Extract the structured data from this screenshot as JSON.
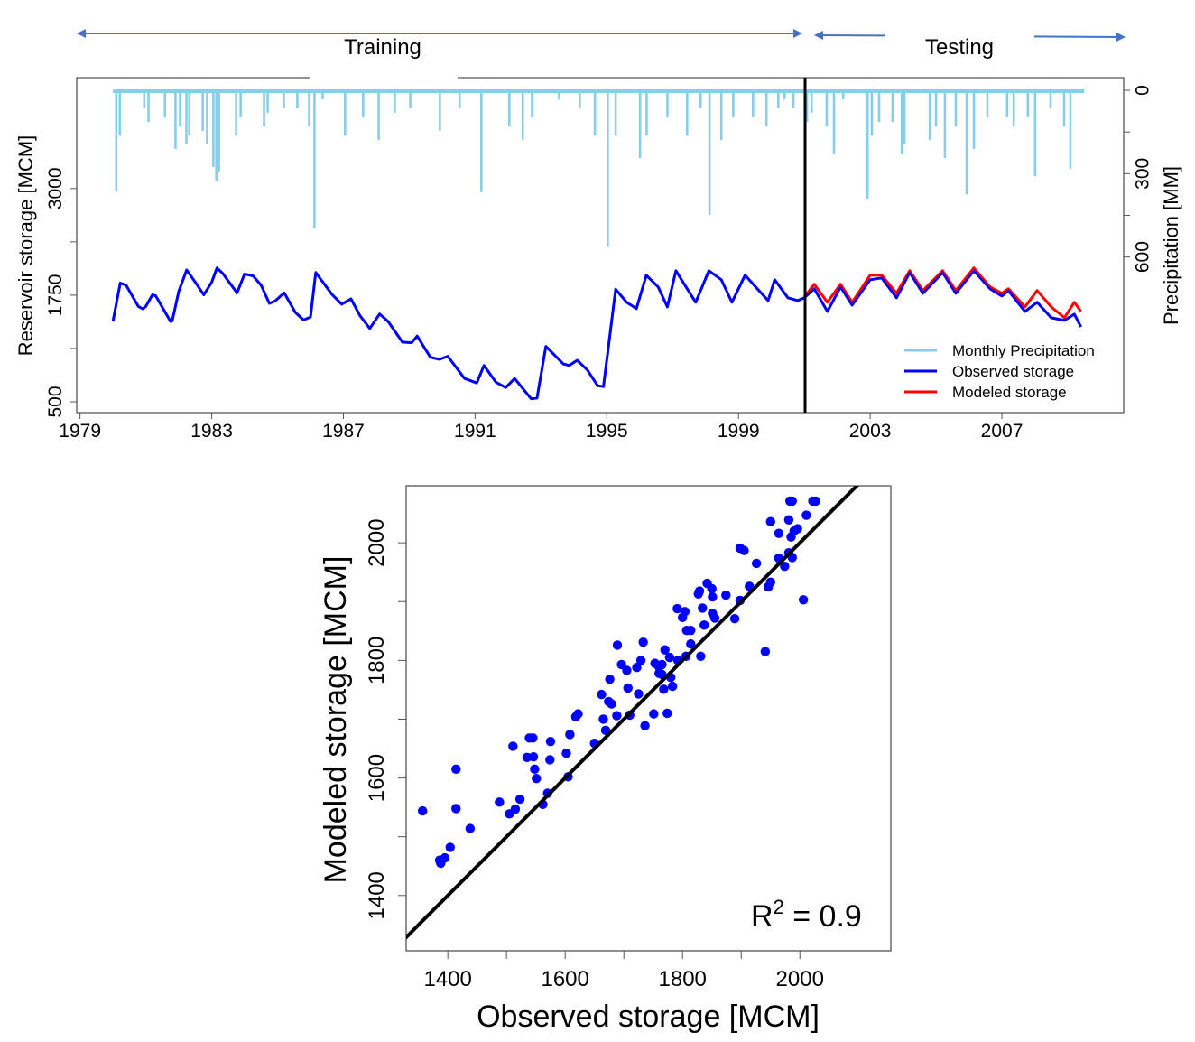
{
  "annotations": {
    "training_label": "Training",
    "testing_label": "Testing",
    "arrow_color": "#4472C4"
  },
  "chart_data": [
    {
      "type": "line",
      "ylabel": "Reservoir storage [MCM]",
      "y2label": "Precipitation [MM]",
      "xlim": [
        1978.9,
        2010.7
      ],
      "ylim": [
        373,
        4300
      ],
      "y2lim_reversed": [
        0,
        1160
      ],
      "xticks": [
        1979,
        1983,
        1987,
        1991,
        1995,
        1999,
        2003,
        2007
      ],
      "xtick_labels": [
        "1979",
        "1983",
        "1987",
        "1991",
        "1995",
        "1999",
        "2003",
        "2007"
      ],
      "yticks": [
        500,
        1125,
        1750,
        2375,
        3000
      ],
      "ytick_labels": [
        "500",
        "1750",
        "3000"
      ],
      "y2ticks": [
        0,
        150,
        300,
        450,
        600
      ],
      "y2tick_labels": [
        "0",
        "300",
        "600"
      ],
      "split_year": 2001.0,
      "legend_position": "bottom-right",
      "legend": [
        "Monthly Precipitation",
        "Observed storage",
        "Modeled storage"
      ],
      "colors": {
        "precipitation": "#87CEEB",
        "observed": "#0000FF",
        "modeled": "#FF0000",
        "split_line": "#000000"
      },
      "precipitation": [
        [
          1980.1,
          364
        ],
        [
          1980.21,
          163
        ],
        [
          1980.95,
          65
        ],
        [
          1981.08,
          114
        ],
        [
          1981.58,
          98
        ],
        [
          1981.9,
          211
        ],
        [
          1982.04,
          130
        ],
        [
          1982.23,
          195
        ],
        [
          1982.32,
          163
        ],
        [
          1982.73,
          146
        ],
        [
          1982.86,
          195
        ],
        [
          1983.05,
          276
        ],
        [
          1983.14,
          325
        ],
        [
          1983.22,
          293
        ],
        [
          1983.74,
          163
        ],
        [
          1983.88,
          98
        ],
        [
          1984.59,
          130
        ],
        [
          1984.7,
          81
        ],
        [
          1985.19,
          65
        ],
        [
          1985.6,
          65
        ],
        [
          1985.96,
          130
        ],
        [
          1986.12,
          497
        ],
        [
          1986.37,
          33
        ],
        [
          1987.05,
          163
        ],
        [
          1987.6,
          98
        ],
        [
          1988.07,
          179
        ],
        [
          1988.56,
          81
        ],
        [
          1989.03,
          65
        ],
        [
          1989.93,
          146
        ],
        [
          1990.53,
          65
        ],
        [
          1991.19,
          367
        ],
        [
          1992.04,
          130
        ],
        [
          1992.45,
          179
        ],
        [
          1992.73,
          98
        ],
        [
          1993.55,
          33
        ],
        [
          1994.18,
          65
        ],
        [
          1994.64,
          163
        ],
        [
          1995.03,
          562
        ],
        [
          1995.27,
          163
        ],
        [
          1996.01,
          244
        ],
        [
          1996.21,
          163
        ],
        [
          1996.84,
          98
        ],
        [
          1997.44,
          163
        ],
        [
          1997.85,
          65
        ],
        [
          1998.12,
          448
        ],
        [
          1998.48,
          179
        ],
        [
          1998.84,
          98
        ],
        [
          1999.44,
          98
        ],
        [
          1999.85,
          130
        ],
        [
          2000.21,
          65
        ],
        [
          2000.4,
          33
        ],
        [
          2000.67,
          65
        ],
        [
          2001.08,
          114
        ],
        [
          2001.22,
          81
        ],
        [
          2001.68,
          130
        ],
        [
          2001.9,
          228
        ],
        [
          2002.18,
          33
        ],
        [
          2002.92,
          390
        ],
        [
          2003.05,
          163
        ],
        [
          2003.27,
          114
        ],
        [
          2003.68,
          114
        ],
        [
          2003.96,
          228
        ],
        [
          2004.04,
          195
        ],
        [
          2004.81,
          179
        ],
        [
          2005.0,
          130
        ],
        [
          2005.27,
          244
        ],
        [
          2005.6,
          130
        ],
        [
          2005.93,
          374
        ],
        [
          2006.15,
          211
        ],
        [
          2006.56,
          98
        ],
        [
          2007.16,
          98
        ],
        [
          2007.36,
          130
        ],
        [
          2007.79,
          98
        ],
        [
          2008.01,
          309
        ],
        [
          2008.48,
          65
        ],
        [
          2008.89,
          130
        ],
        [
          2009.08,
          283
        ]
      ],
      "observed": [
        [
          1980.0,
          1441
        ],
        [
          1980.22,
          1892
        ],
        [
          1980.4,
          1867
        ],
        [
          1980.77,
          1619
        ],
        [
          1980.9,
          1590
        ],
        [
          1981.0,
          1619
        ],
        [
          1981.2,
          1754
        ],
        [
          1981.3,
          1743
        ],
        [
          1981.75,
          1441
        ],
        [
          1981.8,
          1448
        ],
        [
          1982.0,
          1797
        ],
        [
          1982.24,
          2045
        ],
        [
          1982.5,
          1903
        ],
        [
          1982.76,
          1754
        ],
        [
          1983.0,
          1903
        ],
        [
          1983.16,
          2070
        ],
        [
          1983.34,
          2002
        ],
        [
          1983.77,
          1778
        ],
        [
          1984.0,
          1999
        ],
        [
          1984.26,
          1974
        ],
        [
          1984.5,
          1867
        ],
        [
          1984.75,
          1654
        ],
        [
          1984.93,
          1683
        ],
        [
          1985.2,
          1778
        ],
        [
          1985.54,
          1548
        ],
        [
          1985.79,
          1459
        ],
        [
          1986.0,
          1494
        ],
        [
          1986.16,
          2016
        ],
        [
          1986.65,
          1761
        ],
        [
          1986.95,
          1644
        ],
        [
          1987.23,
          1707
        ],
        [
          1987.5,
          1512
        ],
        [
          1987.8,
          1359
        ],
        [
          1988.1,
          1530
        ],
        [
          1988.36,
          1441
        ],
        [
          1988.79,
          1200
        ],
        [
          1989.07,
          1192
        ],
        [
          1989.24,
          1271
        ],
        [
          1989.64,
          1022
        ],
        [
          1989.92,
          997
        ],
        [
          1990.17,
          1033
        ],
        [
          1990.68,
          773
        ],
        [
          1991.05,
          720
        ],
        [
          1991.27,
          926
        ],
        [
          1991.63,
          730
        ],
        [
          1991.93,
          667
        ],
        [
          1992.2,
          773
        ],
        [
          1992.7,
          536
        ],
        [
          1992.88,
          543
        ],
        [
          1993.15,
          1150
        ],
        [
          1993.68,
          944
        ],
        [
          1993.86,
          926
        ],
        [
          1994.1,
          987
        ],
        [
          1994.41,
          873
        ],
        [
          1994.72,
          688
        ],
        [
          1994.9,
          678
        ],
        [
          1995.27,
          1820
        ],
        [
          1995.6,
          1666
        ],
        [
          1995.9,
          1592
        ],
        [
          1996.2,
          1984
        ],
        [
          1996.56,
          1846
        ],
        [
          1996.84,
          1613
        ],
        [
          1997.1,
          2037
        ],
        [
          1997.44,
          1825
        ],
        [
          1997.7,
          1666
        ],
        [
          1998.1,
          2037
        ],
        [
          1998.48,
          1931
        ],
        [
          1998.8,
          1666
        ],
        [
          1999.2,
          1984
        ],
        [
          1999.57,
          1825
        ],
        [
          1999.9,
          1687
        ],
        [
          2000.1,
          1931
        ],
        [
          2000.5,
          1719
        ],
        [
          2000.8,
          1687
        ],
        [
          2001.0,
          1719
        ],
        [
          2001.3,
          1825
        ],
        [
          2001.7,
          1560
        ],
        [
          2002.1,
          1846
        ],
        [
          2002.45,
          1634
        ],
        [
          2003.0,
          1931
        ],
        [
          2003.35,
          1952
        ],
        [
          2003.8,
          1719
        ],
        [
          2004.2,
          2016
        ],
        [
          2004.6,
          1772
        ],
        [
          2005.2,
          2016
        ],
        [
          2005.6,
          1772
        ],
        [
          2006.15,
          2037
        ],
        [
          2006.64,
          1825
        ],
        [
          2007.0,
          1740
        ],
        [
          2007.2,
          1804
        ],
        [
          2007.7,
          1560
        ],
        [
          2008.07,
          1666
        ],
        [
          2008.5,
          1486
        ],
        [
          2008.9,
          1454
        ],
        [
          2009.2,
          1528
        ],
        [
          2009.4,
          1380
        ]
      ],
      "modeled": [
        [
          2001.0,
          1730
        ],
        [
          2001.3,
          1878
        ],
        [
          2001.7,
          1666
        ],
        [
          2002.1,
          1878
        ],
        [
          2002.45,
          1666
        ],
        [
          2003.0,
          1984
        ],
        [
          2003.35,
          1984
        ],
        [
          2003.8,
          1772
        ],
        [
          2004.2,
          2037
        ],
        [
          2004.6,
          1804
        ],
        [
          2005.2,
          2037
        ],
        [
          2005.6,
          1804
        ],
        [
          2006.15,
          2070
        ],
        [
          2006.64,
          1846
        ],
        [
          2007.0,
          1772
        ],
        [
          2007.2,
          1825
        ],
        [
          2007.7,
          1613
        ],
        [
          2008.07,
          1804
        ],
        [
          2008.5,
          1613
        ],
        [
          2008.9,
          1486
        ],
        [
          2009.2,
          1666
        ],
        [
          2009.4,
          1560
        ]
      ]
    },
    {
      "type": "scatter",
      "xlabel": "Observed storage [MCM]",
      "ylabel": "Modeled storage [MCM]",
      "xlim": [
        1329,
        2155
      ],
      "ylim": [
        1306,
        2097
      ],
      "xticks": [
        1400,
        1500,
        1600,
        1700,
        1800,
        1900,
        2000
      ],
      "xtick_labels": [
        "1400",
        "1600",
        "1800",
        "2000"
      ],
      "yticks": [
        1400,
        1500,
        1600,
        1700,
        1800,
        1900,
        2000
      ],
      "ytick_labels": [
        "1400",
        "1600",
        "1800",
        "2000"
      ],
      "reference_line": "1:1",
      "annotation": {
        "base": "R",
        "sup": "2",
        "rest": " = 0.9"
      },
      "colors": {
        "points": "#0000FF",
        "line": "#000000"
      },
      "points": [
        [
          1357,
          1544
        ],
        [
          1414,
          1615
        ],
        [
          1414,
          1548
        ],
        [
          1438,
          1514
        ],
        [
          1404,
          1482
        ],
        [
          1386,
          1460
        ],
        [
          1388,
          1455
        ],
        [
          1395,
          1464
        ],
        [
          1488,
          1559
        ],
        [
          1505,
          1539
        ],
        [
          1515,
          1547
        ],
        [
          1523,
          1564
        ],
        [
          1511,
          1654
        ],
        [
          1562,
          1555
        ],
        [
          1539,
          1668
        ],
        [
          1545,
          1668
        ],
        [
          1535,
          1635
        ],
        [
          1546,
          1636
        ],
        [
          1548,
          1615
        ],
        [
          1551,
          1599
        ],
        [
          1575,
          1662
        ],
        [
          1574,
          1631
        ],
        [
          1570,
          1574
        ],
        [
          1605,
          1602
        ],
        [
          1602,
          1642
        ],
        [
          1608,
          1674
        ],
        [
          1618,
          1704
        ],
        [
          1622,
          1709
        ],
        [
          1650,
          1659
        ],
        [
          1665,
          1700
        ],
        [
          1669,
          1681
        ],
        [
          1688,
          1706
        ],
        [
          1662,
          1742
        ],
        [
          1674,
          1730
        ],
        [
          1679,
          1726
        ],
        [
          1676,
          1768
        ],
        [
          1689,
          1826
        ],
        [
          1696,
          1793
        ],
        [
          1705,
          1783
        ],
        [
          1707,
          1753
        ],
        [
          1710,
          1707
        ],
        [
          1725,
          1743
        ],
        [
          1722,
          1788
        ],
        [
          1729,
          1800
        ],
        [
          1733,
          1831
        ],
        [
          1736,
          1689
        ],
        [
          1751,
          1709
        ],
        [
          1753,
          1795
        ],
        [
          1760,
          1789
        ],
        [
          1765,
          1793
        ],
        [
          1760,
          1778
        ],
        [
          1765,
          1776
        ],
        [
          1770,
          1818
        ],
        [
          1778,
          1805
        ],
        [
          1780,
          1771
        ],
        [
          1768,
          1751
        ],
        [
          1783,
          1756
        ],
        [
          1774,
          1710
        ],
        [
          1792,
          1800
        ],
        [
          1791,
          1888
        ],
        [
          1804,
          1883
        ],
        [
          1800,
          1873
        ],
        [
          1807,
          1851
        ],
        [
          1814,
          1851
        ],
        [
          1814,
          1828
        ],
        [
          1806,
          1807
        ],
        [
          1831,
          1807
        ],
        [
          1834,
          1889
        ],
        [
          1837,
          1860
        ],
        [
          1827,
          1913
        ],
        [
          1829,
          1918
        ],
        [
          1842,
          1931
        ],
        [
          1850,
          1922
        ],
        [
          1851,
          1908
        ],
        [
          1851,
          1880
        ],
        [
          1855,
          1872
        ],
        [
          1874,
          1911
        ],
        [
          1889,
          1871
        ],
        [
          1898,
          1902
        ],
        [
          1914,
          1926
        ],
        [
          1898,
          1991
        ],
        [
          1905,
          1987
        ],
        [
          1926,
          1965
        ],
        [
          1941,
          1815
        ],
        [
          1950,
          2036
        ],
        [
          1964,
          2016
        ],
        [
          1946,
          1925
        ],
        [
          1950,
          1933
        ],
        [
          1964,
          1974
        ],
        [
          1974,
          1960
        ],
        [
          1981,
          1983
        ],
        [
          1987,
          1975
        ],
        [
          1981,
          2039
        ],
        [
          1985,
          2010
        ],
        [
          1990,
          2020
        ],
        [
          1996,
          2024
        ],
        [
          1983,
          2071
        ],
        [
          1987,
          2071
        ],
        [
          2006,
          1903
        ],
        [
          2011,
          2047
        ],
        [
          2022,
          2071
        ],
        [
          2027,
          2071
        ]
      ]
    }
  ]
}
